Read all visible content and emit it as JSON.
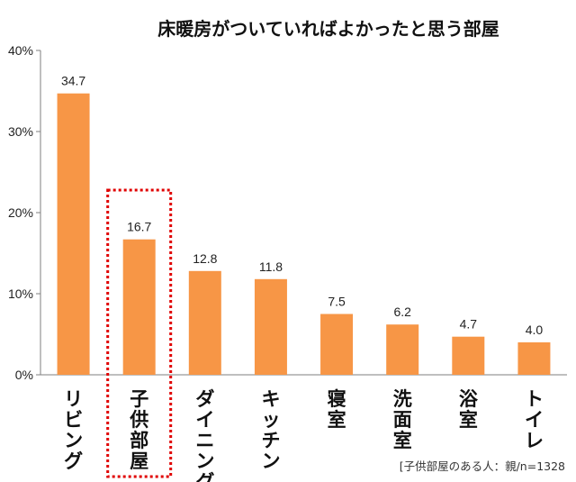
{
  "chart_data": {
    "type": "bar",
    "title": "床暖房がついていればよかったと思う部屋",
    "categories": [
      "リビング",
      "子供部屋",
      "ダイニング",
      "キッチン",
      "寝室",
      "洗面室",
      "浴室",
      "トイレ"
    ],
    "values": [
      34.7,
      16.7,
      12.8,
      11.8,
      7.5,
      6.2,
      4.7,
      4.0
    ],
    "value_labels": [
      "34.7",
      "16.7",
      "12.8",
      "11.8",
      "7.5",
      "6.2",
      "4.7",
      "4.0"
    ],
    "y_ticks": [
      "0%",
      "10%",
      "20%",
      "30%",
      "40%"
    ],
    "ylim": [
      0,
      40
    ],
    "grid": false,
    "bar_color": "#F79646",
    "highlight_category": "子供部屋",
    "highlight_color": "#E00000",
    "note": "[子供部屋のある人：親/n=1328"
  }
}
